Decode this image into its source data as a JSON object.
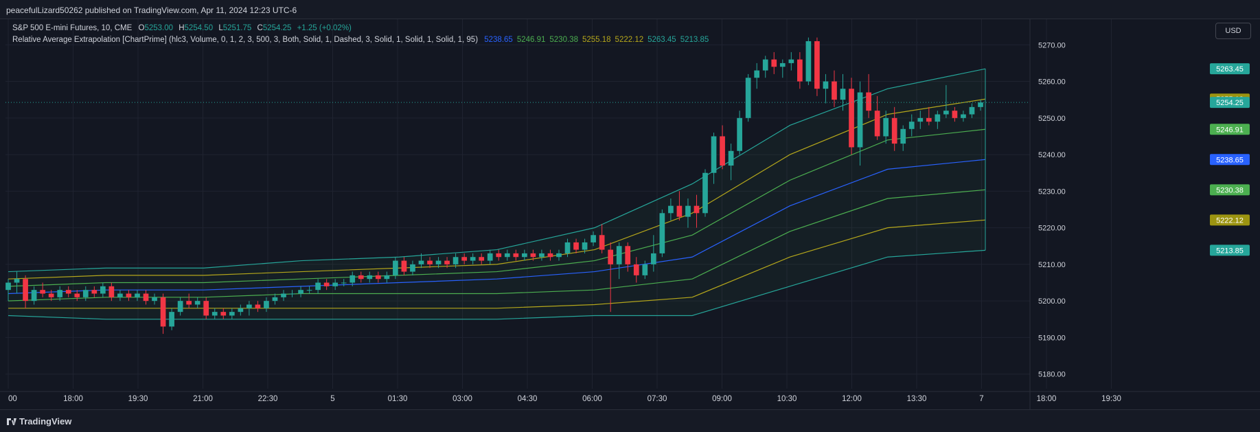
{
  "header": {
    "publish_line": "peacefulLizard50262 published on TradingView.com, Apr 11, 2024 12:23 UTC-6"
  },
  "legend": {
    "symbol": "S&P 500 E-mini Futures, 10, CME",
    "o_label": "O",
    "o_value": "5253.00",
    "h_label": "H",
    "h_value": "5254.50",
    "l_label": "L",
    "l_value": "5251.75",
    "c_label": "C",
    "c_value": "5254.25",
    "change": "+1.25 (+0.02%)",
    "indicator": "Relative Average Extrapolation [ChartPrime] (hlc3, Volume, 0, 1, 2, 3, 500, 3, Both, Solid, 1, Dashed, 3, Solid, 1, Solid, 1, Solid, 1, 95)",
    "indicator_values": [
      {
        "text": "5238.65",
        "color": "#2962ff"
      },
      {
        "text": "5246.91",
        "color": "#4caf50"
      },
      {
        "text": "5230.38",
        "color": "#4caf50"
      },
      {
        "text": "5255.18",
        "color": "#b5a71b"
      },
      {
        "text": "5222.12",
        "color": "#b5a71b"
      },
      {
        "text": "5263.45",
        "color": "#26a69a"
      },
      {
        "text": "5213.85",
        "color": "#26a69a"
      }
    ]
  },
  "currency_button": "USD",
  "footer": {
    "brand": "TradingView"
  },
  "colors": {
    "up": "#26a69a",
    "down": "#f23645",
    "center": "#2962ff",
    "band1": "#4caf50",
    "band2": "#b5a71b",
    "band3": "#26a69a",
    "grid": "#1f2330",
    "axis_text": "#d1d4dc",
    "bg": "#131722"
  },
  "chart_data": {
    "type": "candlestick",
    "ylim": [
      5176,
      5277
    ],
    "y_ticks": [
      "5180.00",
      "5190.00",
      "5200.00",
      "5210.00",
      "5220.00",
      "5230.00",
      "5240.00",
      "5250.00",
      "5260.00",
      "5270.00"
    ],
    "x_ticks": [
      "00",
      "18:00",
      "19:30",
      "21:00",
      "22:30",
      "5",
      "01:30",
      "03:00",
      "04:30",
      "06:00",
      "07:30",
      "09:00",
      "10:30",
      "12:00",
      "13:30",
      "7",
      "18:00",
      "19:30"
    ],
    "last_price": 5254.25,
    "price_labels": [
      {
        "text": "5263.45",
        "value": 5263.45,
        "color": "#26a69a"
      },
      {
        "text": "5255.18",
        "value": 5255.18,
        "color": "#9c9411"
      },
      {
        "text": "5254.25",
        "value": 5254.25,
        "color": "#26a69a"
      },
      {
        "text": "5246.91",
        "value": 5246.91,
        "color": "#4caf50"
      },
      {
        "text": "5238.65",
        "value": 5238.65,
        "color": "#2962ff"
      },
      {
        "text": "5230.38",
        "value": 5230.38,
        "color": "#4caf50"
      },
      {
        "text": "5222.12",
        "value": 5222.12,
        "color": "#9c9411"
      },
      {
        "text": "5213.85",
        "value": 5213.85,
        "color": "#26a69a"
      }
    ],
    "candles": [
      [
        5203,
        5206,
        5200,
        5205
      ],
      [
        5205,
        5208,
        5202,
        5206
      ],
      [
        5206,
        5207,
        5198,
        5200
      ],
      [
        5200,
        5204,
        5199,
        5203
      ],
      [
        5203,
        5205,
        5201,
        5202
      ],
      [
        5202,
        5203,
        5200,
        5201
      ],
      [
        5201,
        5204,
        5200,
        5203
      ],
      [
        5203,
        5204,
        5201,
        5202
      ],
      [
        5202,
        5203,
        5200,
        5201
      ],
      [
        5201,
        5204,
        5200,
        5203
      ],
      [
        5203,
        5204,
        5201,
        5202
      ],
      [
        5202,
        5205,
        5201,
        5204
      ],
      [
        5204,
        5205,
        5200,
        5201
      ],
      [
        5201,
        5203,
        5200,
        5202
      ],
      [
        5202,
        5203,
        5200,
        5201
      ],
      [
        5201,
        5203,
        5200,
        5202
      ],
      [
        5202,
        5203,
        5199,
        5200
      ],
      [
        5200,
        5202,
        5199,
        5201
      ],
      [
        5201,
        5202,
        5191,
        5193
      ],
      [
        5193,
        5198,
        5192,
        5197
      ],
      [
        5197,
        5201,
        5196,
        5200
      ],
      [
        5200,
        5202,
        5198,
        5199
      ],
      [
        5199,
        5201,
        5198,
        5200
      ],
      [
        5200,
        5201,
        5195,
        5196
      ],
      [
        5196,
        5198,
        5195,
        5197
      ],
      [
        5197,
        5198,
        5195,
        5196
      ],
      [
        5196,
        5198,
        5195,
        5197
      ],
      [
        5197,
        5199,
        5196,
        5198
      ],
      [
        5198,
        5200,
        5196,
        5199
      ],
      [
        5199,
        5200,
        5197,
        5198
      ],
      [
        5198,
        5201,
        5197,
        5200
      ],
      [
        5200,
        5202,
        5199,
        5201
      ],
      [
        5201,
        5203,
        5200,
        5202
      ],
      [
        5202,
        5203,
        5201,
        5202
      ],
      [
        5202,
        5204,
        5201,
        5203
      ],
      [
        5203,
        5204,
        5202,
        5203
      ],
      [
        5203,
        5206,
        5202,
        5205
      ],
      [
        5205,
        5206,
        5203,
        5204
      ],
      [
        5204,
        5206,
        5203,
        5205
      ],
      [
        5205,
        5206,
        5204,
        5205
      ],
      [
        5205,
        5208,
        5204,
        5207
      ],
      [
        5207,
        5208,
        5205,
        5206
      ],
      [
        5206,
        5208,
        5205,
        5207
      ],
      [
        5207,
        5208,
        5205,
        5206
      ],
      [
        5206,
        5208,
        5205,
        5207
      ],
      [
        5207,
        5212,
        5206,
        5211
      ],
      [
        5211,
        5212,
        5207,
        5208
      ],
      [
        5208,
        5211,
        5207,
        5210
      ],
      [
        5210,
        5213,
        5209,
        5211
      ],
      [
        5211,
        5212,
        5209,
        5210
      ],
      [
        5210,
        5212,
        5209,
        5211
      ],
      [
        5211,
        5212,
        5209,
        5210
      ],
      [
        5210,
        5213,
        5209,
        5212
      ],
      [
        5212,
        5213,
        5210,
        5211
      ],
      [
        5211,
        5213,
        5210,
        5212
      ],
      [
        5212,
        5213,
        5210,
        5211
      ],
      [
        5211,
        5214,
        5210,
        5213
      ],
      [
        5213,
        5214,
        5211,
        5212
      ],
      [
        5212,
        5214,
        5211,
        5213
      ],
      [
        5213,
        5214,
        5211,
        5212
      ],
      [
        5212,
        5214,
        5211,
        5213
      ],
      [
        5213,
        5214,
        5211,
        5212
      ],
      [
        5212,
        5214,
        5211,
        5213
      ],
      [
        5213,
        5214,
        5211,
        5212
      ],
      [
        5212,
        5214,
        5211,
        5213
      ],
      [
        5213,
        5217,
        5212,
        5216
      ],
      [
        5216,
        5217,
        5213,
        5214
      ],
      [
        5214,
        5217,
        5213,
        5216
      ],
      [
        5216,
        5219,
        5215,
        5218
      ],
      [
        5218,
        5221,
        5213,
        5214
      ],
      [
        5214,
        5216,
        5197,
        5210
      ],
      [
        5210,
        5216,
        5206,
        5215
      ],
      [
        5215,
        5216,
        5208,
        5210
      ],
      [
        5210,
        5212,
        5205,
        5207
      ],
      [
        5207,
        5211,
        5206,
        5210
      ],
      [
        5210,
        5218,
        5208,
        5213
      ],
      [
        5213,
        5225,
        5212,
        5224
      ],
      [
        5224,
        5228,
        5222,
        5226
      ],
      [
        5226,
        5230,
        5222,
        5223
      ],
      [
        5223,
        5228,
        5220,
        5226
      ],
      [
        5226,
        5229,
        5220,
        5224
      ],
      [
        5224,
        5236,
        5223,
        5235
      ],
      [
        5235,
        5246,
        5232,
        5245
      ],
      [
        5245,
        5248,
        5236,
        5237
      ],
      [
        5237,
        5243,
        5233,
        5241
      ],
      [
        5241,
        5252,
        5240,
        5250
      ],
      [
        5250,
        5262,
        5249,
        5261
      ],
      [
        5261,
        5265,
        5258,
        5263
      ],
      [
        5263,
        5267,
        5261,
        5266
      ],
      [
        5266,
        5268,
        5262,
        5264
      ],
      [
        5264,
        5266,
        5261,
        5265
      ],
      [
        5265,
        5268,
        5263,
        5266
      ],
      [
        5266,
        5268,
        5258,
        5260
      ],
      [
        5260,
        5272,
        5259,
        5271
      ],
      [
        5271,
        5272,
        5256,
        5258
      ],
      [
        5258,
        5262,
        5254,
        5260
      ],
      [
        5260,
        5263,
        5253,
        5255
      ],
      [
        5255,
        5262,
        5252,
        5258
      ],
      [
        5258,
        5261,
        5240,
        5242
      ],
      [
        5242,
        5260,
        5237,
        5257
      ],
      [
        5257,
        5262,
        5250,
        5252
      ],
      [
        5252,
        5256,
        5244,
        5245
      ],
      [
        5245,
        5252,
        5243,
        5250
      ],
      [
        5250,
        5253,
        5241,
        5243
      ],
      [
        5243,
        5248,
        5241,
        5247
      ],
      [
        5247,
        5251,
        5245,
        5249
      ],
      [
        5249,
        5252,
        5247,
        5250
      ],
      [
        5250,
        5253,
        5248,
        5249
      ],
      [
        5249,
        5252,
        5247,
        5251
      ],
      [
        5251,
        5259,
        5250,
        5252
      ],
      [
        5252,
        5253,
        5249,
        5250
      ],
      [
        5250,
        5252,
        5249,
        5251
      ],
      [
        5251,
        5254,
        5250,
        5253
      ],
      [
        5253,
        5255,
        5252,
        5254.25
      ]
    ],
    "bands": [
      {
        "name": "5263.45",
        "color": "#26a69a",
        "values": [
          5208,
          5209,
          5209,
          5211,
          5212,
          5214,
          5220,
          5232,
          5248,
          5258,
          5263.45
        ]
      },
      {
        "name": "5255.18",
        "color": "#b5a71b",
        "values": [
          5206,
          5207,
          5207,
          5208,
          5209,
          5210,
          5214,
          5224,
          5240,
          5251,
          5255.18
        ]
      },
      {
        "name": "5246.91",
        "color": "#4caf50",
        "values": [
          5204,
          5205,
          5205,
          5206,
          5207,
          5208,
          5211,
          5218,
          5233,
          5244,
          5246.91
        ]
      },
      {
        "name": "5238.65",
        "color": "#2962ff",
        "values": [
          5202,
          5203,
          5203,
          5204,
          5205,
          5206,
          5208,
          5212,
          5226,
          5236,
          5238.65
        ]
      },
      {
        "name": "5230.38",
        "color": "#4caf50",
        "values": [
          5200,
          5201,
          5201,
          5202,
          5202,
          5202,
          5203,
          5206,
          5219,
          5228,
          5230.38
        ]
      },
      {
        "name": "5222.12",
        "color": "#b5a71b",
        "values": [
          5198,
          5198,
          5198,
          5198,
          5198,
          5198,
          5199,
          5201,
          5212,
          5220,
          5222.12
        ]
      },
      {
        "name": "5213.85",
        "color": "#26a69a",
        "values": [
          5196,
          5195,
          5195,
          5195,
          5195,
          5195,
          5196,
          5196,
          5204,
          5212,
          5213.85
        ]
      }
    ]
  }
}
